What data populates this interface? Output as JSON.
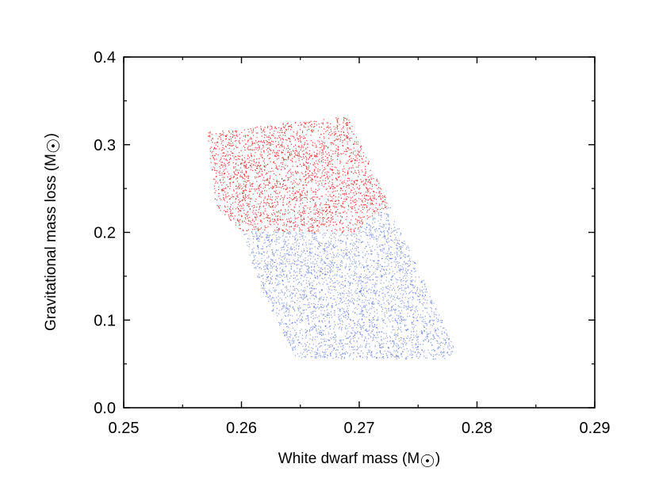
{
  "chart_data": {
    "type": "scatter",
    "xlabel": "White dwarf mass (M",
    "ylabel": "Gravitational mass loss (M",
    "unit_symbol": "☉",
    "unit_close": ")",
    "xlim": [
      0.25,
      0.29
    ],
    "ylim": [
      0.0,
      0.4
    ],
    "x_ticks": [
      "0.25",
      "0.26",
      "0.27",
      "0.28",
      "0.29"
    ],
    "y_ticks": [
      "0.0",
      "0.1",
      "0.2",
      "0.3",
      "0.4"
    ],
    "grid": false,
    "legend": "none",
    "series": [
      {
        "color": "#e8211f",
        "point_count": 2600,
        "region_polygon": [
          [
            0.257,
            0.315
          ],
          [
            0.269,
            0.333
          ],
          [
            0.2725,
            0.232
          ],
          [
            0.2695,
            0.2
          ],
          [
            0.26,
            0.202
          ],
          [
            0.2578,
            0.23
          ]
        ],
        "y_range": [
          0.2,
          0.333
        ]
      },
      {
        "color": "#2b4fd8",
        "point_count": 3200,
        "region_polygon": [
          [
            0.26,
            0.202
          ],
          [
            0.2695,
            0.2
          ],
          [
            0.2725,
            0.232
          ],
          [
            0.2782,
            0.065
          ],
          [
            0.2775,
            0.055
          ],
          [
            0.2645,
            0.057
          ],
          [
            0.2615,
            0.14
          ]
        ],
        "y_range": [
          0.055,
          0.232
        ]
      }
    ]
  }
}
